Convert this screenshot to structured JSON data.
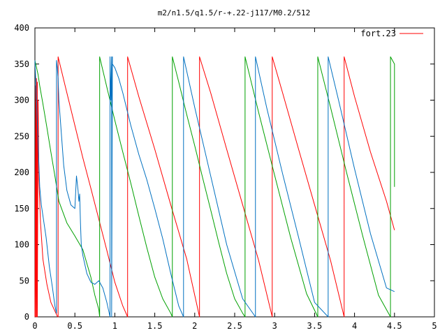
{
  "chart_data": {
    "type": "line",
    "title": "m2/n1.5/q1.5/r-+.22-j117/M0.2/512",
    "xlabel": "",
    "ylabel": "",
    "xlim": [
      0,
      5
    ],
    "ylim": [
      0,
      400
    ],
    "xticks": [
      0,
      0.5,
      1,
      1.5,
      2,
      2.5,
      3,
      3.5,
      4,
      4.5,
      5
    ],
    "xtick_labels": [
      "0",
      "0.5",
      "1",
      "1.5",
      "2",
      "2.5",
      "3",
      "3.5",
      "4",
      "4.5",
      "5"
    ],
    "yticks": [
      0,
      50,
      100,
      150,
      200,
      250,
      300,
      350,
      400
    ],
    "ytick_labels": [
      "0",
      "50",
      "100",
      "150",
      "200",
      "250",
      "300",
      "350",
      "400"
    ],
    "legend": {
      "label": "fort.23",
      "position": "top-right",
      "color": "#ff0000"
    },
    "series": [
      {
        "color": "#ff0000",
        "x": [
          0.0,
          0.01,
          0.01,
          0.02,
          0.02,
          0.03,
          0.03,
          0.04,
          0.05,
          0.07,
          0.1,
          0.15,
          0.2,
          0.25,
          0.28,
          0.29,
          0.29,
          0.4,
          0.5,
          0.6,
          0.7,
          0.8,
          0.9,
          1.0,
          1.1,
          1.16,
          1.16,
          1.3,
          1.5,
          1.7,
          1.9,
          2.06,
          2.06,
          2.2,
          2.4,
          2.6,
          2.8,
          2.97,
          2.97,
          3.1,
          3.3,
          3.5,
          3.7,
          3.87,
          3.87,
          4.0,
          4.2,
          4.4,
          4.5
        ],
        "y": [
          0,
          320,
          0,
          330,
          0,
          325,
          0,
          300,
          190,
          130,
          80,
          45,
          20,
          8,
          1,
          0,
          360,
          310,
          265,
          220,
          178,
          135,
          92,
          48,
          15,
          0,
          360,
          305,
          232,
          155,
          80,
          0,
          360,
          310,
          232,
          155,
          78,
          0,
          360,
          310,
          232,
          155,
          78,
          0,
          360,
          305,
          228,
          160,
          120
        ]
      },
      {
        "color": "#00a000",
        "x": [
          0.0,
          0.02,
          0.04,
          0.06,
          0.1,
          0.15,
          0.2,
          0.25,
          0.3,
          0.4,
          0.5,
          0.6,
          0.7,
          0.75,
          0.8,
          0.81,
          0.81,
          0.9,
          1.0,
          1.1,
          1.2,
          1.3,
          1.4,
          1.5,
          1.6,
          1.7,
          1.72,
          1.72,
          1.8,
          1.9,
          2.0,
          2.1,
          2.2,
          2.3,
          2.4,
          2.5,
          2.6,
          2.63,
          2.63,
          2.8,
          3.0,
          3.2,
          3.4,
          3.54,
          3.54,
          3.7,
          3.9,
          4.1,
          4.3,
          4.45,
          4.45,
          4.5,
          4.5
        ],
        "y": [
          355,
          345,
          335,
          320,
          295,
          262,
          228,
          195,
          160,
          130,
          112,
          93,
          55,
          30,
          10,
          0,
          360,
          318,
          272,
          228,
          185,
          140,
          96,
          55,
          25,
          5,
          0,
          360,
          325,
          280,
          237,
          192,
          148,
          103,
          60,
          25,
          5,
          0,
          360,
          283,
          196,
          110,
          32,
          0,
          360,
          290,
          200,
          113,
          30,
          0,
          360,
          350,
          180
        ]
      },
      {
        "color": "#0070c0",
        "x": [
          0.0,
          0.02,
          0.04,
          0.06,
          0.08,
          0.1,
          0.14,
          0.18,
          0.22,
          0.25,
          0.27,
          0.27,
          0.28,
          0.29,
          0.3,
          0.33,
          0.36,
          0.4,
          0.45,
          0.5,
          0.52,
          0.54,
          0.55,
          0.56,
          0.57,
          0.58,
          0.6,
          0.65,
          0.7,
          0.75,
          0.8,
          0.85,
          0.9,
          0.93,
          0.94,
          0.94,
          0.95,
          0.96,
          0.96,
          0.97,
          0.97,
          1.0,
          1.05,
          1.1,
          1.2,
          1.3,
          1.4,
          1.5,
          1.6,
          1.7,
          1.8,
          1.86,
          1.86,
          2.0,
          2.2,
          2.4,
          2.6,
          2.76,
          2.76,
          2.9,
          3.1,
          3.3,
          3.5,
          3.67,
          3.67,
          3.8,
          4.0,
          4.2,
          4.4,
          4.5
        ],
        "y": [
          355,
          300,
          240,
          180,
          155,
          140,
          110,
          70,
          40,
          15,
          5,
          355,
          345,
          330,
          300,
          255,
          210,
          175,
          155,
          150,
          195,
          175,
          160,
          170,
          130,
          100,
          85,
          60,
          48,
          45,
          50,
          40,
          20,
          5,
          0,
          360,
          300,
          360,
          0,
          360,
          350,
          345,
          330,
          310,
          265,
          225,
          190,
          150,
          108,
          60,
          15,
          0,
          360,
          290,
          195,
          100,
          25,
          0,
          360,
          290,
          198,
          110,
          20,
          0,
          360,
          300,
          205,
          115,
          40,
          35
        ]
      }
    ]
  }
}
